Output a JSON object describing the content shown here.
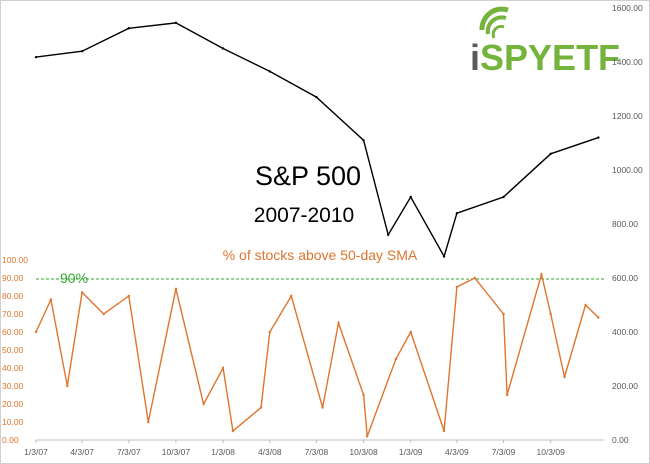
{
  "chart_data": {
    "type": "line",
    "title": "S&P 500",
    "subtitle": "2007-2010",
    "series": [
      {
        "name": "S&P 500",
        "axis": "right",
        "color": "#000000",
        "x": [
          "1/3/07",
          "4/3/07",
          "7/3/07",
          "10/3/07",
          "1/3/08",
          "4/3/08",
          "7/3/08",
          "10/3/08",
          "11/20/08",
          "1/3/09",
          "3/9/09",
          "4/3/09",
          "7/3/09",
          "10/3/09",
          "1/4/10"
        ],
        "values": [
          1418,
          1440,
          1525,
          1545,
          1450,
          1365,
          1270,
          1110,
          760,
          900,
          680,
          840,
          900,
          1060,
          1120
        ]
      },
      {
        "name": "% of stocks above 50-day SMA",
        "axis": "left",
        "color": "#e0752d",
        "x": [
          "1/3/07",
          "2/1/07",
          "3/5/07",
          "4/3/07",
          "5/15/07",
          "7/3/07",
          "8/10/07",
          "10/3/07",
          "11/26/07",
          "1/3/08",
          "1/22/08",
          "3/17/08",
          "4/3/08",
          "5/15/08",
          "7/15/08",
          "8/15/08",
          "10/3/08",
          "10/10/08",
          "12/5/08",
          "1/3/09",
          "3/9/09",
          "4/3/09",
          "5/8/09",
          "7/3/09",
          "7/10/09",
          "9/15/09",
          "10/3/09",
          "10/30/09",
          "12/10/09",
          "1/4/10"
        ],
        "values": [
          60,
          78,
          30,
          82,
          70,
          80,
          10,
          84,
          20,
          40,
          5,
          18,
          60,
          80,
          18,
          65,
          25,
          2,
          45,
          60,
          5,
          85,
          90,
          70,
          25,
          92,
          70,
          35,
          75,
          68
        ]
      }
    ],
    "x_tick_labels": [
      "1/3/07",
      "4/3/07",
      "7/3/07",
      "10/3/07",
      "1/3/08",
      "4/3/08",
      "7/3/08",
      "10/3/08",
      "1/3/09",
      "4/3/09",
      "7/3/09",
      "10/3/09"
    ],
    "left_axis": {
      "range": [
        0,
        100
      ],
      "tick_labels": [
        "0.00",
        "10.00",
        "20.00",
        "30.00",
        "40.00",
        "50.00",
        "60.00",
        "70.00",
        "80.00",
        "90.00",
        "100.00"
      ]
    },
    "right_axis": {
      "range": [
        0,
        1600
      ],
      "tick_labels": [
        "0.00",
        "200.00",
        "400.00",
        "600.00",
        "800.00",
        "1000.00",
        "1200.00",
        "1400.00",
        "1600.00"
      ]
    },
    "reference_line": {
      "value": 90,
      "label": "90%",
      "color": "#2eaa2e"
    },
    "annotation": "% of stocks above 50-day SMA",
    "grid": false
  },
  "logo": {
    "brand_i": "i",
    "brand_rest": "SPYETF",
    "color_i": "#5a5a5a",
    "color_rest": "#74b43c"
  },
  "colors": {
    "sp500": "#000000",
    "breadth": "#e0752d",
    "reference": "#2eaa2e"
  }
}
